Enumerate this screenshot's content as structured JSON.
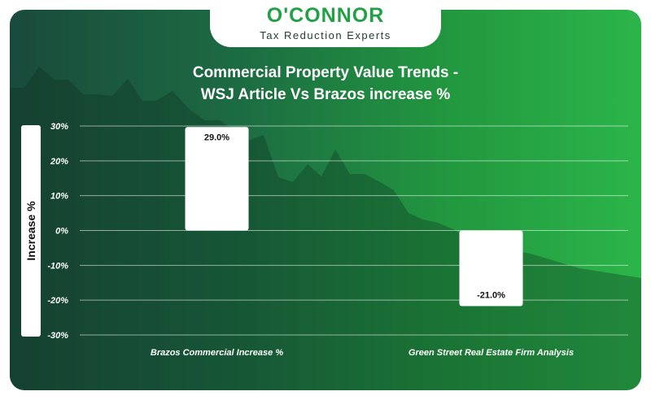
{
  "brand": {
    "name": "O'CONNOR",
    "tagline": "Tax Reduction Experts"
  },
  "chart_data": {
    "type": "bar",
    "title": "Commercial Property Value Trends -",
    "subtitle": "WSJ Article Vs Brazos increase %",
    "ylabel": "Increase %",
    "xlabel": "",
    "categories": [
      "Brazos Commercial Increase %",
      "Green Street Real Estate Firm Analysis"
    ],
    "values": [
      29.0,
      -21.0
    ],
    "data_labels": [
      "29.0%",
      "-21.0%"
    ],
    "ylim": [
      -30,
      30
    ],
    "yticks": [
      "30%",
      "20%",
      "10%",
      "0%",
      "-10%",
      "-20%",
      "-30%"
    ],
    "ytick_values": [
      30,
      20,
      10,
      0,
      -10,
      -20,
      -30
    ],
    "grid": true,
    "bar_color": "#ffffff",
    "background_color": "#1c6a42"
  }
}
